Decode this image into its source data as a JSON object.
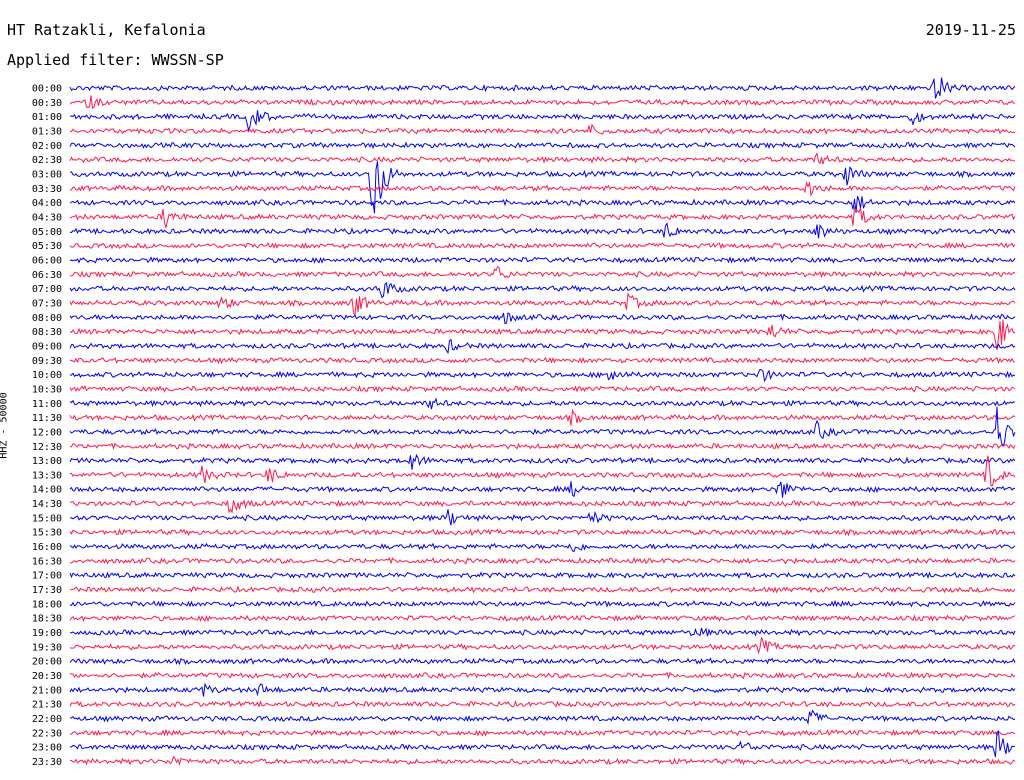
{
  "header": {
    "station": "HT Ratzakli, Kefalonia",
    "filter": "Applied filter: WWSSN-SP",
    "date": "2019-11-25",
    "channel": "HHZ - 50000"
  },
  "colors": {
    "trace_even": "#0000ee",
    "trace_odd": "#ff1a4d",
    "background": "#ffffff"
  },
  "chart_data": {
    "type": "line",
    "title": "HT Ratzakli, Kefalonia",
    "subtitle": "Applied filter: WWSSN-SP",
    "date": "2019-11-25",
    "ylabel": "HHZ - 50000",
    "xlabel": "",
    "row_labels": [
      "00:00",
      "00:30",
      "01:00",
      "01:30",
      "02:00",
      "02:30",
      "03:00",
      "03:30",
      "04:00",
      "04:30",
      "05:00",
      "05:30",
      "06:00",
      "06:30",
      "07:00",
      "07:30",
      "08:00",
      "08:30",
      "09:00",
      "09:30",
      "10:00",
      "10:30",
      "11:00",
      "11:30",
      "12:00",
      "12:30",
      "13:00",
      "13:30",
      "14:00",
      "14:30",
      "15:00",
      "15:30",
      "16:00",
      "16:30",
      "17:00",
      "17:30",
      "18:00",
      "18:30",
      "19:00",
      "19:30",
      "20:00",
      "20:30",
      "21:00",
      "21:30",
      "22:00",
      "22:30",
      "23:00",
      "23:30"
    ],
    "row_minutes": 30,
    "events": [
      {
        "row": "00:00",
        "t": 0.915,
        "amp": 3.0
      },
      {
        "row": "00:30",
        "t": 0.02,
        "amp": 1.2
      },
      {
        "row": "01:00",
        "t": 0.19,
        "amp": 3.0
      },
      {
        "row": "01:00",
        "t": 0.89,
        "amp": 1.2
      },
      {
        "row": "01:30",
        "t": 0.55,
        "amp": 1.0
      },
      {
        "row": "02:30",
        "t": 0.79,
        "amp": 1.0
      },
      {
        "row": "03:00",
        "t": 0.32,
        "amp": 12.0
      },
      {
        "row": "03:00",
        "t": 0.82,
        "amp": 2.0
      },
      {
        "row": "03:30",
        "t": 0.78,
        "amp": 1.5
      },
      {
        "row": "04:00",
        "t": 0.83,
        "amp": 2.0
      },
      {
        "row": "04:30",
        "t": 0.1,
        "amp": 2.0
      },
      {
        "row": "04:30",
        "t": 0.83,
        "amp": 2.5
      },
      {
        "row": "05:00",
        "t": 0.63,
        "amp": 1.5
      },
      {
        "row": "05:00",
        "t": 0.79,
        "amp": 1.5
      },
      {
        "row": "06:30",
        "t": 0.45,
        "amp": 1.5
      },
      {
        "row": "07:00",
        "t": 0.33,
        "amp": 2.0
      },
      {
        "row": "07:30",
        "t": 0.16,
        "amp": 1.2
      },
      {
        "row": "07:30",
        "t": 0.3,
        "amp": 2.5
      },
      {
        "row": "07:30",
        "t": 0.59,
        "amp": 1.5
      },
      {
        "row": "08:00",
        "t": 0.46,
        "amp": 1.0
      },
      {
        "row": "08:30",
        "t": 0.74,
        "amp": 1.5
      },
      {
        "row": "08:30",
        "t": 0.98,
        "amp": 4.0
      },
      {
        "row": "09:00",
        "t": 0.4,
        "amp": 1.0
      },
      {
        "row": "10:00",
        "t": 0.57,
        "amp": 1.5
      },
      {
        "row": "10:00",
        "t": 0.73,
        "amp": 1.2
      },
      {
        "row": "11:00",
        "t": 0.38,
        "amp": 1.0
      },
      {
        "row": "11:30",
        "t": 0.53,
        "amp": 1.0
      },
      {
        "row": "12:00",
        "t": 0.98,
        "amp": 5.0
      },
      {
        "row": "12:00",
        "t": 0.79,
        "amp": 1.5
      },
      {
        "row": "13:00",
        "t": 0.36,
        "amp": 1.5
      },
      {
        "row": "13:30",
        "t": 0.14,
        "amp": 1.5
      },
      {
        "row": "13:30",
        "t": 0.21,
        "amp": 1.5
      },
      {
        "row": "13:30",
        "t": 0.97,
        "amp": 3.0
      },
      {
        "row": "14:00",
        "t": 0.75,
        "amp": 2.0
      },
      {
        "row": "14:00",
        "t": 0.53,
        "amp": 1.2
      },
      {
        "row": "14:30",
        "t": 0.17,
        "amp": 2.0
      },
      {
        "row": "15:00",
        "t": 0.4,
        "amp": 1.5
      },
      {
        "row": "15:00",
        "t": 0.55,
        "amp": 1.2
      },
      {
        "row": "16:00",
        "t": 0.53,
        "amp": 1.0
      },
      {
        "row": "19:00",
        "t": 0.66,
        "amp": 1.2
      },
      {
        "row": "19:30",
        "t": 0.73,
        "amp": 1.5
      },
      {
        "row": "21:00",
        "t": 0.14,
        "amp": 1.0
      },
      {
        "row": "21:00",
        "t": 0.2,
        "amp": 1.0
      },
      {
        "row": "22:00",
        "t": 0.78,
        "amp": 2.0
      },
      {
        "row": "23:00",
        "t": 0.71,
        "amp": 1.0
      },
      {
        "row": "23:00",
        "t": 0.98,
        "amp": 3.0
      },
      {
        "row": "23:30",
        "t": 0.11,
        "amp": 1.0
      }
    ],
    "grid": false,
    "legend": "none"
  }
}
